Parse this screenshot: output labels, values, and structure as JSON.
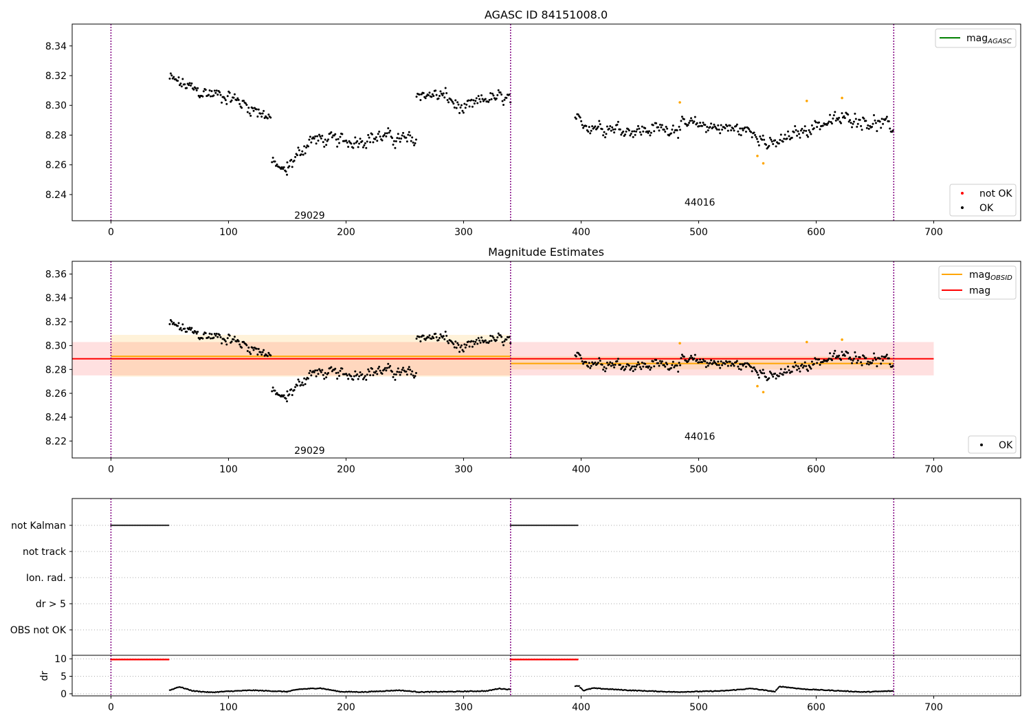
{
  "chart_data": [
    {
      "type": "scatter",
      "title": "AGASC ID 84151008.0",
      "xlim": [
        -33,
        774
      ],
      "ylim": [
        8.2224,
        8.3547
      ],
      "xticks": [
        0,
        100,
        200,
        300,
        400,
        500,
        600,
        700
      ],
      "yticks": [
        8.24,
        8.26,
        8.28,
        8.3,
        8.32,
        8.34
      ],
      "observation_boundaries": [
        0,
        340,
        666
      ],
      "obsid_labels": [
        {
          "text": "29029",
          "x": 169,
          "y": 8.226
        },
        {
          "text": "44016",
          "x": 501,
          "y": 8.235
        }
      ],
      "legend_lines": [
        {
          "label": "mag",
          "sub": "AGASC",
          "color": "#008000"
        }
      ],
      "legend_points": [
        {
          "label": "not OK",
          "color": "#ff0000"
        },
        {
          "label": "OK",
          "color": "#000000"
        }
      ],
      "series": [
        {
          "name": "OK",
          "color": "#000000"
        },
        {
          "name": "not OK",
          "color": "#ff0000"
        }
      ],
      "highlight_points": {
        "color": "#ffa500",
        "points": [
          [
            484,
            8.302
          ],
          [
            550,
            8.266
          ],
          [
            555,
            8.261
          ],
          [
            592,
            8.303
          ],
          [
            622,
            8.305
          ]
        ]
      },
      "ok_segments": [
        {
          "x0": 50,
          "x1": 136,
          "trend": [
            [
              50,
              8.318
            ],
            [
              75,
              8.309
            ],
            [
              100,
              8.306
            ],
            [
              136,
              8.292
            ]
          ],
          "noise": 0.006
        },
        {
          "x0": 137,
          "x1": 150,
          "trend": [
            [
              137,
              8.262
            ],
            [
              150,
              8.254
            ]
          ],
          "noise": 0.004
        },
        {
          "x0": 150,
          "x1": 260,
          "trend": [
            [
              150,
              8.258
            ],
            [
              170,
              8.277
            ],
            [
              200,
              8.276
            ],
            [
              230,
              8.279
            ],
            [
              260,
              8.276
            ]
          ],
          "noise": 0.006
        },
        {
          "x0": 260,
          "x1": 340,
          "trend": [
            [
              260,
              8.308
            ],
            [
              285,
              8.306
            ],
            [
              300,
              8.296
            ],
            [
              320,
              8.305
            ],
            [
              340,
              8.304
            ]
          ],
          "noise": 0.006
        },
        {
          "x0": 395,
          "x1": 666,
          "trend": [
            [
              395,
              8.288
            ],
            [
              450,
              8.283
            ],
            [
              500,
              8.287
            ],
            [
              550,
              8.282
            ],
            [
              560,
              8.272
            ],
            [
              600,
              8.287
            ],
            [
              630,
              8.292
            ],
            [
              666,
              8.285
            ]
          ],
          "noise": 0.006
        }
      ]
    },
    {
      "type": "scatter",
      "title": "Magnitude Estimates",
      "xlim": [
        -33,
        774
      ],
      "ylim": [
        8.2058,
        8.3707
      ],
      "xticks": [
        0,
        100,
        200,
        300,
        400,
        500,
        600,
        700
      ],
      "yticks": [
        8.22,
        8.24,
        8.26,
        8.28,
        8.3,
        8.32,
        8.34,
        8.36
      ],
      "observation_boundaries": [
        0,
        340,
        666
      ],
      "obsid_labels": [
        {
          "text": "29029",
          "x": 169,
          "y": 8.212
        },
        {
          "text": "44016",
          "x": 501,
          "y": 8.224
        }
      ],
      "legend_lines": [
        {
          "label": "mag",
          "sub": "OBSID",
          "color": "#ffa500"
        },
        {
          "label": "mag",
          "sub": "",
          "color": "#ff0000"
        }
      ],
      "legend_points": [
        {
          "label": "OK",
          "color": "#000000"
        }
      ],
      "mag": {
        "value": 8.289,
        "band": [
          8.275,
          8.303
        ],
        "x0": -33,
        "x1": 700
      },
      "mag_obsid": [
        {
          "x0": 0,
          "x1": 340,
          "value": 8.291,
          "band": [
            8.274,
            8.309
          ]
        },
        {
          "x0": 340,
          "x1": 666,
          "value": 8.285,
          "band": [
            8.28,
            8.291
          ]
        }
      ],
      "series": [
        {
          "name": "mag",
          "color": "#ff0000"
        },
        {
          "name": "OK",
          "color": "#000000"
        }
      ]
    },
    {
      "type": "scatter",
      "title": "",
      "xlim": [
        -33,
        774
      ],
      "xticks": [
        0,
        100,
        200,
        300,
        400,
        500,
        600,
        700
      ],
      "observation_boundaries": [
        0,
        340,
        666
      ],
      "flag_rows": [
        "not Kalman",
        "not track",
        "Ion. rad.",
        "dr > 5",
        "OBS not OK"
      ],
      "flag_spans": [
        {
          "row": "not Kalman",
          "x0": 0,
          "x1": 49
        },
        {
          "row": "not Kalman",
          "x0": 340,
          "x1": 397
        }
      ],
      "dr": {
        "ylabel": "dr",
        "yticks": [
          0,
          5,
          10
        ],
        "ylim": [
          -0.6,
          11
        ],
        "red_spans": [
          {
            "x0": 0,
            "x1": 49,
            "value": 9.8
          },
          {
            "x0": 340,
            "x1": 397,
            "value": 9.8
          }
        ],
        "trend": [
          [
            50,
            1.0
          ],
          [
            58,
            2.0
          ],
          [
            70,
            0.8
          ],
          [
            85,
            0.4
          ],
          [
            100,
            0.7
          ],
          [
            120,
            1.0
          ],
          [
            150,
            0.6
          ],
          [
            160,
            1.3
          ],
          [
            178,
            1.6
          ],
          [
            195,
            0.6
          ],
          [
            215,
            0.5
          ],
          [
            245,
            1.0
          ],
          [
            262,
            0.5
          ],
          [
            290,
            0.6
          ],
          [
            320,
            0.8
          ],
          [
            330,
            1.5
          ],
          [
            340,
            1.2
          ],
          [
            398,
            2.3
          ],
          [
            402,
            0.9
          ],
          [
            410,
            1.6
          ],
          [
            440,
            1.0
          ],
          [
            480,
            0.5
          ],
          [
            520,
            0.8
          ],
          [
            545,
            1.5
          ],
          [
            565,
            0.6
          ],
          [
            569,
            2.1
          ],
          [
            590,
            1.3
          ],
          [
            610,
            1.0
          ],
          [
            640,
            0.5
          ],
          [
            666,
            0.8
          ]
        ]
      }
    }
  ]
}
